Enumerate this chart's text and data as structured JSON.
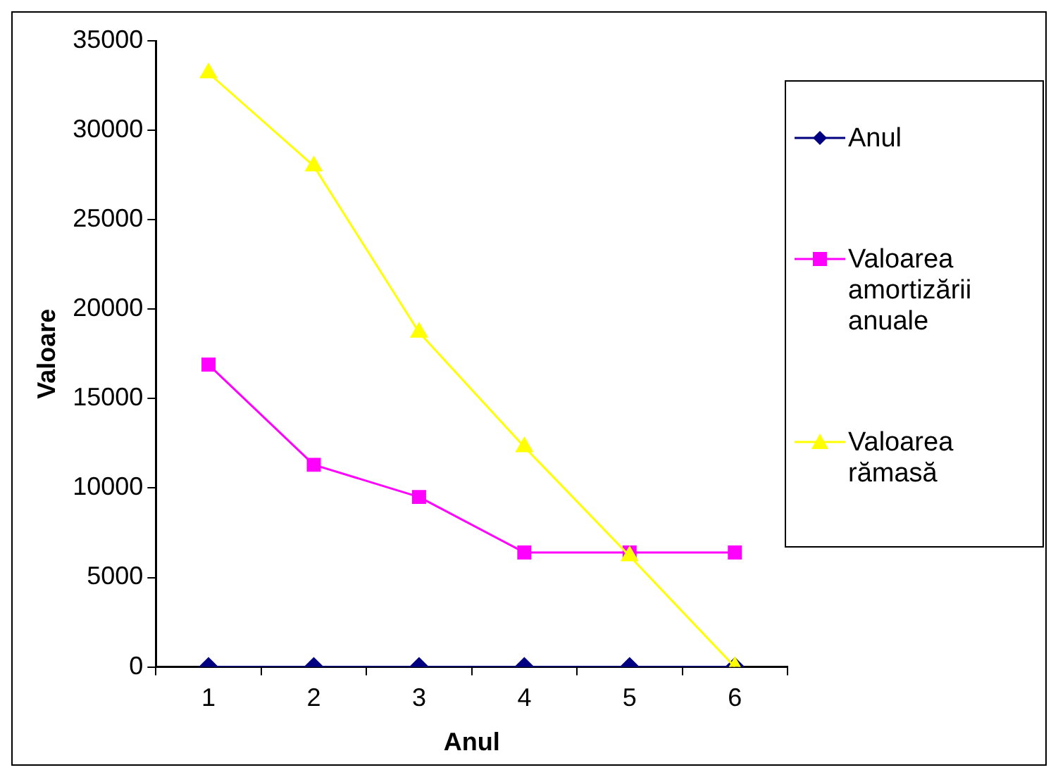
{
  "chart_data": {
    "type": "line",
    "xlabel": "Anul",
    "ylabel": "Valoare",
    "categories": [
      "1",
      "2",
      "3",
      "4",
      "5",
      "6"
    ],
    "ylim": [
      0,
      35000
    ],
    "yticks": [
      0,
      5000,
      10000,
      15000,
      20000,
      25000,
      30000,
      35000
    ],
    "grid": false,
    "legend": "right",
    "series": [
      {
        "name": "Anul",
        "color": "#000080",
        "marker": "diamond",
        "values": [
          0,
          0,
          0,
          0,
          0,
          0
        ]
      },
      {
        "name": "Valoarea amortizării anuale",
        "color": "#ff00ff",
        "marker": "square",
        "values": [
          16900,
          11300,
          9500,
          6400,
          6400,
          6400
        ]
      },
      {
        "name": "Valoarea rămasă",
        "color": "#ffff00",
        "marker": "triangle",
        "values": [
          33200,
          28000,
          18700,
          12300,
          6200,
          0
        ]
      }
    ]
  }
}
